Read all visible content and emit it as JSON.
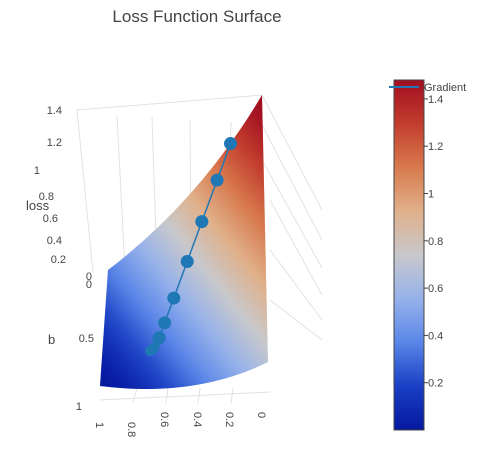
{
  "chart_data": {
    "type": "surface",
    "title": "Loss Function Surface",
    "axes": {
      "z": {
        "label": "loss",
        "ticks": [
          "1.4",
          "1.2",
          "1",
          "0.8",
          "0.6",
          "0.4",
          "0.2",
          "0"
        ]
      },
      "b": {
        "label": "b",
        "ticks": [
          "0",
          "0.5",
          "1"
        ]
      },
      "w": {
        "label": "",
        "ticks": [
          "1",
          "0.8",
          "0.6",
          "0.4",
          "0.2",
          "0"
        ]
      }
    },
    "colorbar": {
      "colorscale": "RdBu_r",
      "ticks": [
        "1.4",
        "1.2",
        "1",
        "0.8",
        "0.6",
        "0.4",
        "0.2"
      ],
      "min": 0,
      "max": 1.48,
      "colors": [
        "#05189e",
        "#1a3fc4",
        "#5a86e8",
        "#96b2ea",
        "#c8c8cc",
        "#e0b08a",
        "#d87a4e",
        "#c23d2e",
        "#a10e20"
      ]
    },
    "legend": {
      "series_name": "Gradient",
      "line_color": "#1f77b4"
    },
    "series": [
      {
        "name": "Gradient",
        "marker_color": "#1f77b4",
        "loss": [
          1.32,
          1.1,
          0.85,
          0.61,
          0.39,
          0.24,
          0.15,
          0.1,
          0.08,
          0.07,
          0.065
        ]
      }
    ]
  }
}
